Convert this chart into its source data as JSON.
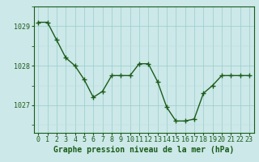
{
  "hours": [
    0,
    1,
    2,
    3,
    4,
    5,
    6,
    7,
    8,
    9,
    10,
    11,
    12,
    13,
    14,
    15,
    16,
    17,
    18,
    19,
    20,
    21,
    22,
    23
  ],
  "pressure": [
    1029.1,
    1029.1,
    1028.65,
    1028.2,
    1028.0,
    1027.65,
    1027.2,
    1027.35,
    1027.75,
    1027.75,
    1027.75,
    1028.05,
    1028.05,
    1027.6,
    1026.95,
    1026.6,
    1026.6,
    1026.65,
    1027.3,
    1027.5,
    1027.75,
    1027.75,
    1027.75,
    1027.75
  ],
  "line_color": "#1a5c1a",
  "marker_color": "#1a5c1a",
  "bg_color": "#cce8e8",
  "grid_color_major": "#99cccc",
  "grid_color_minor": "#bbdddd",
  "ylabel_ticks": [
    1027,
    1028,
    1029
  ],
  "xlabel": "Graphe pression niveau de la mer (hPa)",
  "xlabel_fontsize": 7,
  "tick_fontsize": 6,
  "ylim": [
    1026.3,
    1029.5
  ],
  "xlim": [
    -0.5,
    23.5
  ]
}
